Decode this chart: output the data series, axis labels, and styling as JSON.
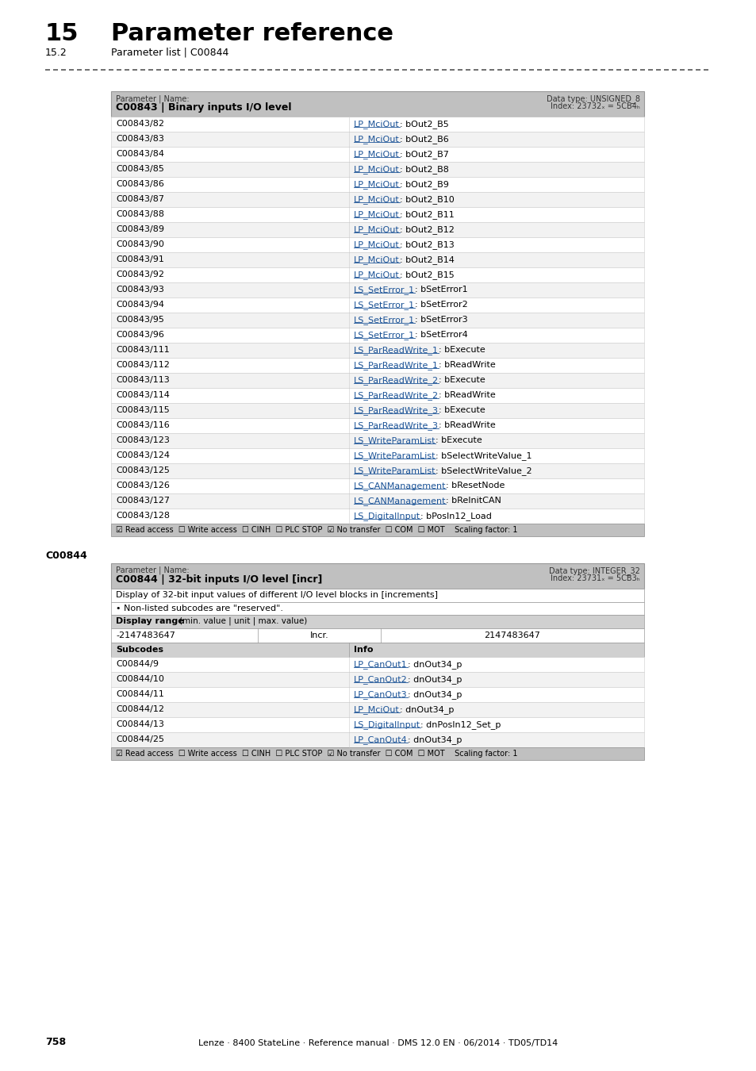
{
  "page_title": "15",
  "page_title_text": "Parameter reference",
  "page_subtitle": "15.2",
  "page_subtitle_text": "Parameter list | C00844",
  "footer_text": "Lenze · 8400 StateLine · Reference manual · DMS 12.0 EN · 06/2014 · TD05/TD14",
  "footer_page": "758",
  "table1_header_left": "Parameter | Name:",
  "table1_header_bold": "C00843 | Binary inputs I/O level",
  "table1_header_right_top": "Data type: UNSIGNED_8",
  "table1_header_right_bot": "Index: 23732ₓ = 5CB4ₕ",
  "table1_rows": [
    [
      "C00843/82",
      "LP_MciOut",
      "bOut2_B5"
    ],
    [
      "C00843/83",
      "LP_MciOut",
      "bOut2_B6"
    ],
    [
      "C00843/84",
      "LP_MciOut",
      "bOut2_B7"
    ],
    [
      "C00843/85",
      "LP_MciOut",
      "bOut2_B8"
    ],
    [
      "C00843/86",
      "LP_MciOut",
      "bOut2_B9"
    ],
    [
      "C00843/87",
      "LP_MciOut",
      "bOut2_B10"
    ],
    [
      "C00843/88",
      "LP_MciOut",
      "bOut2_B11"
    ],
    [
      "C00843/89",
      "LP_MciOut",
      "bOut2_B12"
    ],
    [
      "C00843/90",
      "LP_MciOut",
      "bOut2_B13"
    ],
    [
      "C00843/91",
      "LP_MciOut",
      "bOut2_B14"
    ],
    [
      "C00843/92",
      "LP_MciOut",
      "bOut2_B15"
    ],
    [
      "C00843/93",
      "LS_SetError_1",
      "bSetError1"
    ],
    [
      "C00843/94",
      "LS_SetError_1",
      "bSetError2"
    ],
    [
      "C00843/95",
      "LS_SetError_1",
      "bSetError3"
    ],
    [
      "C00843/96",
      "LS_SetError_1",
      "bSetError4"
    ],
    [
      "C00843/111",
      "LS_ParReadWrite_1",
      "bExecute"
    ],
    [
      "C00843/112",
      "LS_ParReadWrite_1",
      "bReadWrite"
    ],
    [
      "C00843/113",
      "LS_ParReadWrite_2",
      "bExecute"
    ],
    [
      "C00843/114",
      "LS_ParReadWrite_2",
      "bReadWrite"
    ],
    [
      "C00843/115",
      "LS_ParReadWrite_3",
      "bExecute"
    ],
    [
      "C00843/116",
      "LS_ParReadWrite_3",
      "bReadWrite"
    ],
    [
      "C00843/123",
      "LS_WriteParamList",
      "bExecute"
    ],
    [
      "C00843/124",
      "LS_WriteParamList",
      "bSelectWriteValue_1"
    ],
    [
      "C00843/125",
      "LS_WriteParamList",
      "bSelectWriteValue_2"
    ],
    [
      "C00843/126",
      "LS_CANManagement",
      "bResetNode"
    ],
    [
      "C00843/127",
      "LS_CANManagement",
      "bReInitCAN"
    ],
    [
      "C00843/128",
      "LS_DigitalInput",
      "bPosIn12_Load"
    ]
  ],
  "table1_footer": "☑ Read access  ☐ Write access  ☐ CINH  ☐ PLC STOP  ☑ No transfer  ☐ COM  ☐ MOT    Scaling factor: 1",
  "table2_label": "C00844",
  "table2_header_left": "Parameter | Name:",
  "table2_header_bold": "C00844 | 32-bit inputs I/O level [incr]",
  "table2_header_right_top": "Data type: INTEGER_32",
  "table2_header_right_bot": "Index: 23731ₓ = 5CB3ₕ",
  "table2_desc1": "Display of 32-bit input values of different I/O level blocks in [increments]",
  "table2_desc2": "• Non-listed subcodes are \"reserved\".",
  "table2_display_range_label": "Display range",
  "table2_display_range_sub": "(min. value | unit | max. value)",
  "table2_range_min": "-2147483647",
  "table2_range_unit": "Incr.",
  "table2_range_max": "2147483647",
  "table2_subcodes_label": "Subcodes",
  "table2_info_label": "Info",
  "table2_rows": [
    [
      "C00844/9",
      "LP_CanOut1",
      "dnOut34_p"
    ],
    [
      "C00844/10",
      "LP_CanOut2",
      "dnOut34_p"
    ],
    [
      "C00844/11",
      "LP_CanOut3",
      "dnOut34_p"
    ],
    [
      "C00844/12",
      "LP_MciOut",
      "dnOut34_p"
    ],
    [
      "C00844/13",
      "LS_DigitalInput",
      "dnPosIn12_Set_p"
    ],
    [
      "C00844/25",
      "LP_CanOut4",
      "dnOut34_p"
    ]
  ],
  "table2_footer": "☑ Read access  ☐ Write access  ☐ CINH  ☐ PLC STOP  ☑ No transfer  ☐ COM  ☐ MOT    Scaling factor: 1",
  "bg_color": "#ffffff",
  "header_bg": "#c0c0c0",
  "row_alt_bg": "#f2f2f2",
  "row_bg": "#ffffff",
  "subheader_bg": "#d0d0d0",
  "link_color": "#1a5296",
  "text_color": "#000000",
  "border_color": "#999999"
}
